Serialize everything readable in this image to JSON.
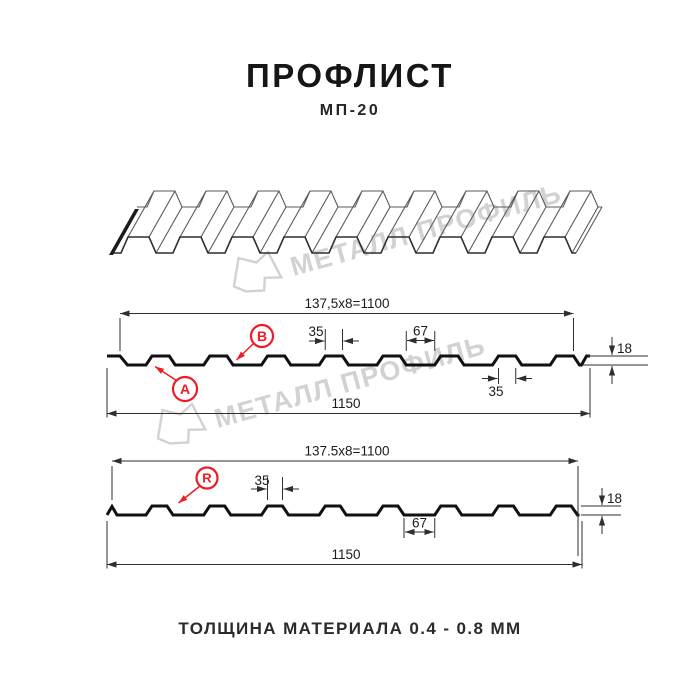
{
  "header": {
    "title": "ПРОФЛИСТ",
    "subtitle": "МП-20"
  },
  "watermark": {
    "brand_text": "МЕТАЛЛ ПРОФИЛЬ",
    "color": "#d2d2d2"
  },
  "colors": {
    "accent_red": "#ed1c24",
    "drawing_line": "#111111",
    "dimension_line": "#2e2e2e"
  },
  "section_top": {
    "labels": {
      "a": "A",
      "b": "B"
    },
    "dims": {
      "width_formula": "137,5x8=1100",
      "rib_top_width": "35",
      "flat_width": "67",
      "height": "18",
      "rib_bottom_width": "35",
      "total_width": "1150"
    }
  },
  "section_bottom": {
    "labels": {
      "r": "R"
    },
    "dims": {
      "width_formula": "137.5x8=1100",
      "rib_top_width": "35",
      "flat_width": "67",
      "height": "18",
      "total_width": "1150"
    }
  },
  "footer": {
    "thickness_note": "ТОЛЩИНА МАТЕРИАЛА 0.4 - 0.8 ММ"
  }
}
